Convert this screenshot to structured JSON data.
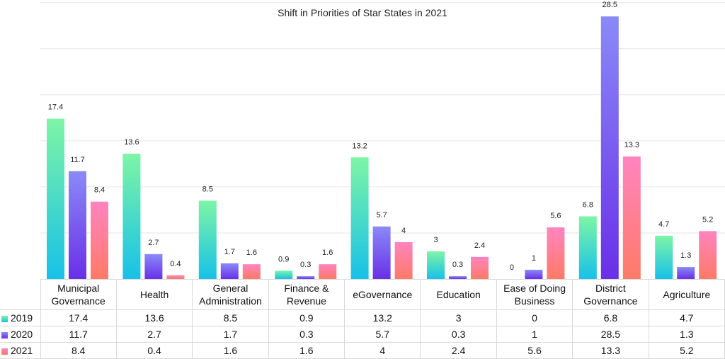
{
  "chart_data": {
    "type": "bar",
    "title": "Shift in Priorities of Star States in 2021",
    "categories": [
      "Municipal\nGovernance",
      "Health",
      "General\nAdministration",
      "Finance &\nRevenue",
      "eGovernance",
      "Education",
      "Ease of Doing\nBusiness",
      "District\nGovernance",
      "Agriculture"
    ],
    "series": [
      {
        "name": "2019",
        "values": [
          17.4,
          13.6,
          8.5,
          0.9,
          13.2,
          3,
          0,
          6.8,
          4.7
        ],
        "labels": [
          "17.4",
          "13.6",
          "8.5",
          "0.9",
          "13.2",
          "3",
          "0",
          "6.8",
          "4.7"
        ],
        "color_top": "#7ef5a6",
        "color_bottom": "#17c1e8"
      },
      {
        "name": "2020",
        "values": [
          11.7,
          2.7,
          1.7,
          0.3,
          5.7,
          0.3,
          1,
          28.5,
          1.3
        ],
        "labels": [
          "11.7",
          "2.7",
          "1.7",
          "0.3",
          "5.7",
          "0.3",
          "1",
          "28.5",
          "1.3"
        ],
        "color_top": "#8a8af7",
        "color_bottom": "#6a2fe8"
      },
      {
        "name": "2021",
        "values": [
          8.4,
          0.4,
          1.6,
          1.6,
          4,
          2.4,
          5.6,
          13.3,
          5.2
        ],
        "labels": [
          "8.4",
          "0.4",
          "1.6",
          "1.6",
          "4",
          "2.4",
          "5.6",
          "13.3",
          "5.2"
        ],
        "color_top": "#ff84c0",
        "color_bottom": "#ff7a66"
      }
    ],
    "ylim": [
      0,
      30
    ],
    "grid": true,
    "legend": "data-table"
  }
}
